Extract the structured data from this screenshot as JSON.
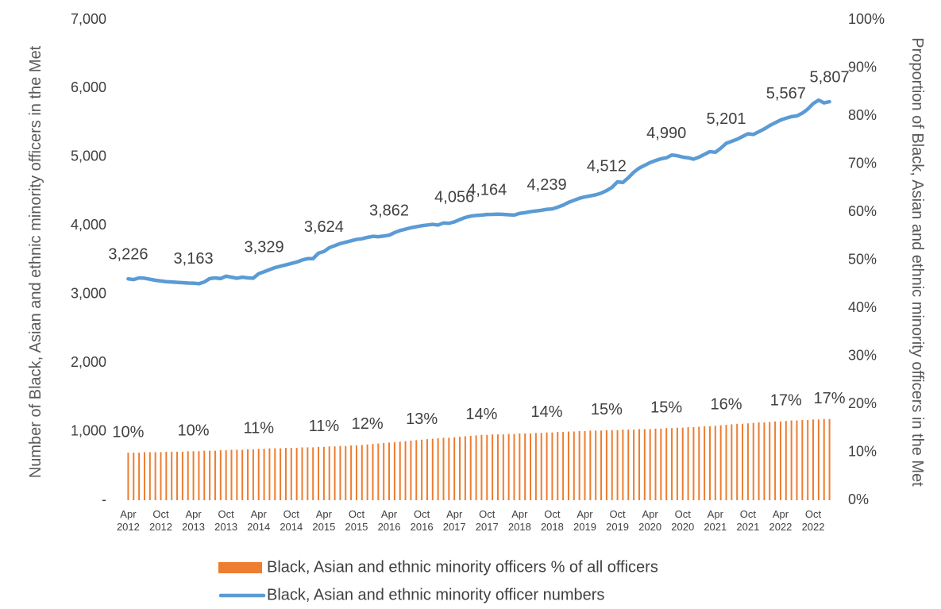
{
  "chart_data": {
    "type": "bar-line",
    "y_label": "Number of Black, Asian and ethnic minority officers in the Met",
    "y2_label": "Proportion of Black, Asian and ethnic minority officers in the Met",
    "categories": [
      "Apr 2012",
      null,
      null,
      null,
      null,
      null,
      "Oct 2012",
      null,
      null,
      null,
      null,
      null,
      "Apr 2013",
      null,
      null,
      null,
      null,
      null,
      "Oct 2013",
      null,
      null,
      null,
      null,
      null,
      "Apr 2014",
      null,
      null,
      null,
      null,
      null,
      "Oct 2014",
      null,
      null,
      null,
      null,
      null,
      "Apr 2015",
      null,
      null,
      null,
      null,
      null,
      "Oct 2015",
      null,
      null,
      null,
      null,
      null,
      "Apr 2016",
      null,
      null,
      null,
      null,
      null,
      "Oct 2016",
      null,
      null,
      null,
      null,
      null,
      "Apr 2017",
      null,
      null,
      null,
      null,
      null,
      "Oct 2017",
      null,
      null,
      null,
      null,
      null,
      "Apr 2018",
      null,
      null,
      null,
      null,
      null,
      "Oct 2018",
      null,
      null,
      null,
      null,
      null,
      "Apr 2019",
      null,
      null,
      null,
      null,
      null,
      "Oct 2019",
      null,
      null,
      null,
      null,
      null,
      "Apr 2020",
      null,
      null,
      null,
      null,
      null,
      "Oct 2020",
      null,
      null,
      null,
      null,
      null,
      "Apr 2021",
      null,
      null,
      null,
      null,
      null,
      "Oct 2021",
      null,
      null,
      null,
      null,
      null,
      "Apr 2022",
      null,
      null,
      null,
      null,
      null,
      "Oct 2022",
      null,
      null,
      null
    ],
    "series": [
      {
        "name": "Black, Asian and ethnic minority officers % of all officers",
        "type": "bar",
        "axis": "y2",
        "color": "#ed7d31",
        "values": [
          9.9,
          9.9,
          9.9,
          10.0,
          10.0,
          10.0,
          10.0,
          10.1,
          10.1,
          10.1,
          10.1,
          10.2,
          10.2,
          10.2,
          10.3,
          10.3,
          10.3,
          10.4,
          10.4,
          10.5,
          10.5,
          10.5,
          10.6,
          10.6,
          10.7,
          10.7,
          10.8,
          10.8,
          10.8,
          10.9,
          10.9,
          10.9,
          11.0,
          11.0,
          11.0,
          11.1,
          11.1,
          11.2,
          11.2,
          11.3,
          11.3,
          11.4,
          11.4,
          11.5,
          11.6,
          11.7,
          11.8,
          11.9,
          12.0,
          12.1,
          12.2,
          12.3,
          12.4,
          12.5,
          12.6,
          12.7,
          12.8,
          12.9,
          13.0,
          13.0,
          13.1,
          13.2,
          13.3,
          13.4,
          13.5,
          13.6,
          13.6,
          13.7,
          13.7,
          13.7,
          13.8,
          13.8,
          13.9,
          13.9,
          13.9,
          14.0,
          14.0,
          14.1,
          14.1,
          14.2,
          14.2,
          14.3,
          14.3,
          14.4,
          14.4,
          14.5,
          14.5,
          14.5,
          14.6,
          14.6,
          14.6,
          14.7,
          14.7,
          14.7,
          14.8,
          14.8,
          14.8,
          14.9,
          14.9,
          15.0,
          15.0,
          15.1,
          15.1,
          15.2,
          15.2,
          15.3,
          15.4,
          15.4,
          15.5,
          15.6,
          15.7,
          15.8,
          15.9,
          15.9,
          16.0,
          16.1,
          16.2,
          16.2,
          16.3,
          16.4,
          16.4,
          16.5,
          16.6,
          16.6,
          16.7,
          16.7,
          16.8,
          16.8,
          16.9,
          16.9
        ],
        "value_labels": [
          "10%",
          null,
          null,
          null,
          null,
          null,
          null,
          null,
          null,
          null,
          null,
          null,
          "10%",
          null,
          null,
          null,
          null,
          null,
          null,
          null,
          null,
          null,
          null,
          null,
          "11%",
          null,
          null,
          null,
          null,
          null,
          null,
          null,
          null,
          null,
          null,
          null,
          "11%",
          null,
          null,
          null,
          null,
          null,
          null,
          null,
          "12%",
          null,
          null,
          null,
          null,
          null,
          null,
          null,
          null,
          null,
          "13%",
          null,
          null,
          null,
          null,
          null,
          null,
          null,
          null,
          null,
          null,
          "14%",
          null,
          null,
          null,
          null,
          null,
          null,
          null,
          null,
          null,
          null,
          null,
          "14%",
          null,
          null,
          null,
          null,
          null,
          null,
          null,
          null,
          null,
          null,
          "15%",
          null,
          null,
          null,
          null,
          null,
          null,
          null,
          null,
          null,
          null,
          "15%",
          null,
          null,
          null,
          null,
          null,
          null,
          null,
          null,
          null,
          null,
          "16%",
          null,
          null,
          null,
          null,
          null,
          null,
          null,
          null,
          null,
          null,
          "17%",
          null,
          null,
          null,
          null,
          null,
          null,
          null,
          "17%"
        ]
      },
      {
        "name": "Black, Asian and ethnic minority officer numbers",
        "type": "line",
        "axis": "y",
        "color": "#5b9bd5",
        "values": [
          3226,
          3215,
          3240,
          3235,
          3220,
          3205,
          3195,
          3185,
          3180,
          3175,
          3170,
          3165,
          3163,
          3155,
          3180,
          3230,
          3240,
          3230,
          3265,
          3250,
          3235,
          3250,
          3240,
          3235,
          3300,
          3329,
          3360,
          3390,
          3410,
          3430,
          3450,
          3470,
          3500,
          3520,
          3520,
          3600,
          3624,
          3680,
          3710,
          3740,
          3760,
          3780,
          3800,
          3810,
          3830,
          3845,
          3840,
          3850,
          3862,
          3900,
          3930,
          3950,
          3970,
          3985,
          4000,
          4010,
          4020,
          4010,
          4040,
          4035,
          4056,
          4090,
          4120,
          4140,
          4150,
          4155,
          4164,
          4165,
          4168,
          4165,
          4160,
          4155,
          4180,
          4190,
          4205,
          4215,
          4225,
          4239,
          4245,
          4270,
          4300,
          4340,
          4370,
          4400,
          4420,
          4435,
          4450,
          4475,
          4512,
          4560,
          4640,
          4630,
          4700,
          4780,
          4840,
          4880,
          4920,
          4950,
          4975,
          4990,
          5030,
          5020,
          5000,
          4990,
          4970,
          5000,
          5040,
          5080,
          5070,
          5130,
          5201,
          5230,
          5260,
          5300,
          5340,
          5330,
          5370,
          5410,
          5460,
          5500,
          5540,
          5567,
          5590,
          5600,
          5640,
          5700,
          5780,
          5830,
          5790,
          5807
        ],
        "value_labels": [
          "3,226",
          null,
          null,
          null,
          null,
          null,
          null,
          null,
          null,
          null,
          null,
          null,
          "3,163",
          null,
          null,
          null,
          null,
          null,
          null,
          null,
          null,
          null,
          null,
          null,
          null,
          "3,329",
          null,
          null,
          null,
          null,
          null,
          null,
          null,
          null,
          null,
          null,
          "3,624",
          null,
          null,
          null,
          null,
          null,
          null,
          null,
          null,
          null,
          null,
          null,
          "3,862",
          null,
          null,
          null,
          null,
          null,
          null,
          null,
          null,
          null,
          null,
          null,
          "4,056",
          null,
          null,
          null,
          null,
          null,
          "4,164",
          null,
          null,
          null,
          null,
          null,
          null,
          null,
          null,
          null,
          null,
          "4,239",
          null,
          null,
          null,
          null,
          null,
          null,
          null,
          null,
          null,
          null,
          "4,512",
          null,
          null,
          null,
          null,
          null,
          null,
          null,
          null,
          null,
          null,
          "4,990",
          null,
          null,
          null,
          null,
          null,
          null,
          null,
          null,
          null,
          null,
          "5,201",
          null,
          null,
          null,
          null,
          null,
          null,
          null,
          null,
          null,
          null,
          "5,567",
          null,
          null,
          null,
          null,
          null,
          null,
          null,
          "5,807"
        ]
      }
    ],
    "ylim": [
      0,
      7000
    ],
    "yticks": [
      {
        "value": 0,
        "label": "-"
      },
      {
        "value": 1000,
        "label": "1,000"
      },
      {
        "value": 2000,
        "label": "2,000"
      },
      {
        "value": 3000,
        "label": "3,000"
      },
      {
        "value": 4000,
        "label": "4,000"
      },
      {
        "value": 5000,
        "label": "5,000"
      },
      {
        "value": 6000,
        "label": "6,000"
      },
      {
        "value": 7000,
        "label": "7,000"
      }
    ],
    "y2lim": [
      0,
      100
    ],
    "y2ticks": [
      {
        "value": 0,
        "label": "0%"
      },
      {
        "value": 10,
        "label": "10%"
      },
      {
        "value": 20,
        "label": "20%"
      },
      {
        "value": 30,
        "label": "30%"
      },
      {
        "value": 40,
        "label": "40%"
      },
      {
        "value": 50,
        "label": "50%"
      },
      {
        "value": 60,
        "label": "60%"
      },
      {
        "value": 70,
        "label": "70%"
      },
      {
        "value": 80,
        "label": "80%"
      },
      {
        "value": 90,
        "label": "90%"
      },
      {
        "value": 100,
        "label": "100%"
      }
    ],
    "legend": "bottom"
  }
}
